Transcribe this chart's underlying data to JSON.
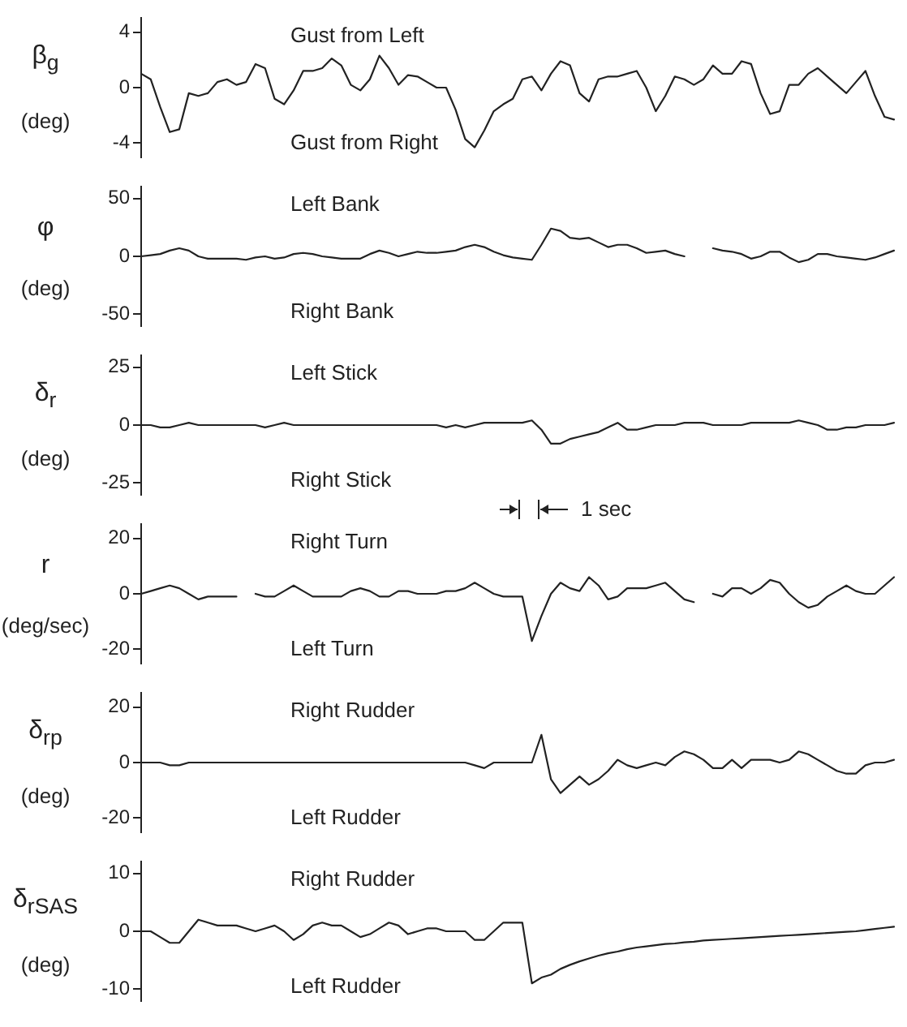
{
  "chart_data": [
    {
      "type": "line",
      "ylabel": "β$_{g}$\n(deg)",
      "annotations": [
        "Gust from Left",
        "Gust from Right"
      ],
      "tick_labels": "y",
      "ylim": [
        -5,
        5
      ],
      "yticks": [
        -4,
        0,
        4
      ],
      "categories": [
        null,
        null,
        null,
        null,
        null,
        null,
        null,
        null,
        null,
        null,
        null,
        null,
        null,
        null,
        null,
        null,
        null,
        null,
        null,
        null,
        null,
        null,
        null,
        null,
        null,
        null,
        null,
        null,
        null,
        null,
        null,
        null,
        null,
        null,
        null,
        null,
        null,
        null,
        null,
        null,
        null,
        null,
        null,
        null,
        null,
        null,
        null,
        null,
        null,
        null,
        null,
        null,
        null,
        null,
        null,
        null,
        null,
        null,
        null,
        null,
        null,
        null,
        null,
        null,
        null,
        null,
        null,
        null,
        null,
        null,
        null,
        null,
        null,
        null,
        null,
        null,
        null,
        null,
        null,
        null
      ],
      "series": [
        {
          "color": "#222222",
          "values": [
            1.0,
            0.6,
            -1.4,
            -3.2,
            -3.0,
            -0.4,
            -0.6,
            -0.4,
            0.4,
            0.6,
            0.2,
            0.4,
            1.7,
            1.4,
            -0.8,
            -1.2,
            -0.2,
            1.2,
            1.2,
            1.4,
            2.1,
            1.6,
            0.2,
            -0.2,
            0.6,
            2.3,
            1.4,
            0.2,
            0.9,
            0.8,
            0.4,
            0,
            0,
            -1.6,
            -3.7,
            -4.3,
            -3.1,
            -1.7,
            -1.2,
            -0.8,
            0.6,
            0.8,
            -0.2,
            1.0,
            1.9,
            1.6,
            -0.4,
            -1.0,
            0.6,
            0.8,
            0.8,
            1.0,
            1.2,
            0,
            -1.7,
            -0.6,
            0.8,
            0.6,
            0.2,
            0.6,
            1.6,
            1.0,
            1.0,
            1.9,
            1.7,
            -0.4,
            -1.9,
            -1.7,
            0.2,
            0.2,
            1.0,
            1.4,
            0.8,
            0.2,
            -0.4,
            0.4,
            1.2,
            -0.6,
            -2.1,
            -2.3
          ]
        }
      ]
    },
    {
      "type": "line",
      "ylabel": "φ\n(deg)",
      "annotations": [
        "Left Bank",
        "Right Bank"
      ],
      "tick_labels": "y",
      "ylim": [
        -60,
        60
      ],
      "yticks": [
        -50,
        0,
        50
      ],
      "categories": [
        null,
        null,
        null,
        null,
        null,
        null,
        null,
        null,
        null,
        null,
        null,
        null,
        null,
        null,
        null,
        null,
        null,
        null,
        null,
        null,
        null,
        null,
        null,
        null,
        null,
        null,
        null,
        null,
        null,
        null,
        null,
        null,
        null,
        null,
        null,
        null,
        null,
        null,
        null,
        null,
        null,
        null,
        null,
        null,
        null,
        null,
        null,
        null,
        null,
        null,
        null,
        null,
        null,
        null,
        null,
        null,
        null,
        null,
        null,
        null,
        null,
        null,
        null,
        null,
        null,
        null,
        null,
        null,
        null,
        null,
        null,
        null,
        null,
        null,
        null,
        null,
        null,
        null,
        null,
        null
      ],
      "series": [
        {
          "color": "#222222",
          "values": [
            0,
            1,
            2,
            5,
            7,
            5,
            0,
            -2,
            -2,
            -2,
            -2,
            -3,
            -1,
            0,
            -2,
            -1,
            2,
            3,
            2,
            0,
            -1,
            -2,
            -2,
            -2,
            2,
            5,
            3,
            0,
            2,
            4,
            3,
            3,
            4,
            5,
            8,
            10,
            8,
            4,
            1,
            -1,
            -2,
            -3,
            10,
            24,
            22,
            16,
            15,
            16,
            12,
            8,
            10,
            10,
            7,
            3,
            4,
            5,
            2,
            0,
            null,
            null,
            7,
            5,
            4,
            2,
            -2,
            0,
            4,
            4,
            -1,
            -5,
            -3,
            2,
            2,
            0,
            -1,
            -2,
            -3,
            -1,
            2,
            5
          ]
        }
      ]
    },
    {
      "type": "line",
      "ylabel": "δ$_{r}$\n(deg)",
      "annotations": [
        "Left Stick",
        "Right Stick"
      ],
      "tick_labels": "y",
      "ylim": [
        -30,
        30
      ],
      "yticks": [
        -25,
        0,
        25
      ],
      "categories": [
        null,
        null,
        null,
        null,
        null,
        null,
        null,
        null,
        null,
        null,
        null,
        null,
        null,
        null,
        null,
        null,
        null,
        null,
        null,
        null,
        null,
        null,
        null,
        null,
        null,
        null,
        null,
        null,
        null,
        null,
        null,
        null,
        null,
        null,
        null,
        null,
        null,
        null,
        null,
        null,
        null,
        null,
        null,
        null,
        null,
        null,
        null,
        null,
        null,
        null,
        null,
        null,
        null,
        null,
        null,
        null,
        null,
        null,
        null,
        null,
        null,
        null,
        null,
        null,
        null,
        null,
        null,
        null,
        null,
        null,
        null,
        null,
        null,
        null,
        null,
        null,
        null,
        null,
        null,
        null
      ],
      "series": [
        {
          "color": "#222222",
          "values": [
            0,
            0,
            -1,
            -1,
            0,
            1,
            0,
            0,
            0,
            0,
            0,
            0,
            0,
            -1,
            0,
            1,
            0,
            0,
            0,
            0,
            0,
            0,
            0,
            0,
            0,
            0,
            0,
            0,
            0,
            0,
            0,
            0,
            -1,
            0,
            -1,
            0,
            1,
            1,
            1,
            1,
            1,
            2,
            -2,
            -8,
            -8,
            -6,
            -5,
            -4,
            -3,
            -1,
            1,
            -2,
            -2,
            -1,
            0,
            0,
            0,
            1,
            1,
            1,
            0,
            0,
            0,
            0,
            1,
            1,
            1,
            1,
            1,
            2,
            1,
            0,
            -2,
            -2,
            -1,
            -1,
            0,
            0,
            0,
            1
          ]
        }
      ]
    },
    {
      "type": "line",
      "ylabel": "r\n(deg/sec)",
      "annotations": [
        "Right Turn",
        "Left Turn",
        "1 sec"
      ],
      "tick_labels": "y",
      "ylim": [
        -25,
        25
      ],
      "yticks": [
        -20,
        0,
        20
      ],
      "categories": [
        null,
        null,
        null,
        null,
        null,
        null,
        null,
        null,
        null,
        null,
        null,
        null,
        null,
        null,
        null,
        null,
        null,
        null,
        null,
        null,
        null,
        null,
        null,
        null,
        null,
        null,
        null,
        null,
        null,
        null,
        null,
        null,
        null,
        null,
        null,
        null,
        null,
        null,
        null,
        null,
        null,
        null,
        null,
        null,
        null,
        null,
        null,
        null,
        null,
        null,
        null,
        null,
        null,
        null,
        null,
        null,
        null,
        null,
        null,
        null,
        null,
        null,
        null,
        null,
        null,
        null,
        null,
        null,
        null,
        null,
        null,
        null,
        null,
        null,
        null,
        null,
        null,
        null,
        null,
        null
      ],
      "series": [
        {
          "color": "#222222",
          "values": [
            0,
            1,
            2,
            3,
            2,
            0,
            -2,
            -1,
            -1,
            -1,
            -1,
            null,
            0,
            -1,
            -1,
            1,
            3,
            1,
            -1,
            -1,
            -1,
            -1,
            1,
            2,
            1,
            -1,
            -1,
            1,
            1,
            0,
            0,
            0,
            1,
            1,
            2,
            4,
            2,
            0,
            -1,
            -1,
            -1,
            -17,
            -8,
            0,
            4,
            2,
            1,
            6,
            3,
            -2,
            -1,
            2,
            2,
            2,
            3,
            4,
            1,
            -2,
            -3,
            null,
            0,
            -1,
            2,
            2,
            0,
            2,
            5,
            4,
            0,
            -3,
            -5,
            -4,
            -1,
            1,
            3,
            1,
            0,
            0,
            3,
            6
          ]
        }
      ]
    },
    {
      "type": "line",
      "ylabel": "δ$_{rp}$\n(deg)",
      "annotations": [
        "Right Rudder",
        "Left Rudder"
      ],
      "tick_labels": "y",
      "ylim": [
        -25,
        25
      ],
      "yticks": [
        -20,
        0,
        20
      ],
      "categories": [
        null,
        null,
        null,
        null,
        null,
        null,
        null,
        null,
        null,
        null,
        null,
        null,
        null,
        null,
        null,
        null,
        null,
        null,
        null,
        null,
        null,
        null,
        null,
        null,
        null,
        null,
        null,
        null,
        null,
        null,
        null,
        null,
        null,
        null,
        null,
        null,
        null,
        null,
        null,
        null,
        null,
        null,
        null,
        null,
        null,
        null,
        null,
        null,
        null,
        null,
        null,
        null,
        null,
        null,
        null,
        null,
        null,
        null,
        null,
        null,
        null,
        null,
        null,
        null,
        null,
        null,
        null,
        null,
        null,
        null,
        null,
        null,
        null,
        null,
        null,
        null,
        null,
        null,
        null,
        null
      ],
      "series": [
        {
          "color": "#222222",
          "values": [
            0,
            0,
            0,
            -1,
            -1,
            0,
            0,
            0,
            0,
            0,
            0,
            0,
            0,
            0,
            0,
            0,
            0,
            0,
            0,
            0,
            0,
            0,
            0,
            0,
            0,
            0,
            0,
            0,
            0,
            0,
            0,
            0,
            0,
            0,
            0,
            -1,
            -2,
            0,
            0,
            0,
            0,
            0,
            10,
            -6,
            -11,
            -8,
            -5,
            -8,
            -6,
            -3,
            1,
            -1,
            -2,
            -1,
            0,
            -1,
            2,
            4,
            3,
            1,
            -2,
            -2,
            1,
            -2,
            1,
            1,
            1,
            0,
            1,
            4,
            3,
            1,
            -1,
            -3,
            -4,
            -4,
            -1,
            0,
            0,
            1
          ]
        }
      ]
    },
    {
      "type": "line",
      "ylabel": "δ$_{rSAS}$\n(deg)",
      "annotations": [
        "Right Rudder",
        "Left Rudder"
      ],
      "tick_labels": "y",
      "ylim": [
        -12,
        12
      ],
      "yticks": [
        -10,
        0,
        10
      ],
      "categories": [
        null,
        null,
        null,
        null,
        null,
        null,
        null,
        null,
        null,
        null,
        null,
        null,
        null,
        null,
        null,
        null,
        null,
        null,
        null,
        null,
        null,
        null,
        null,
        null,
        null,
        null,
        null,
        null,
        null,
        null,
        null,
        null,
        null,
        null,
        null,
        null,
        null,
        null,
        null,
        null,
        null,
        null,
        null,
        null,
        null,
        null,
        null,
        null,
        null,
        null,
        null,
        null,
        null,
        null,
        null,
        null,
        null,
        null,
        null,
        null,
        null,
        null,
        null,
        null,
        null,
        null,
        null,
        null,
        null,
        null,
        null,
        null,
        null,
        null,
        null,
        null,
        null,
        null,
        null,
        null
      ],
      "series": [
        {
          "color": "#222222",
          "values": [
            0,
            0,
            -1,
            -2,
            -2,
            0,
            2,
            1.5,
            1,
            1,
            1,
            0.5,
            0,
            0.5,
            1,
            0,
            -1.5,
            -0.5,
            1,
            1.5,
            1,
            1,
            0,
            -1,
            -0.5,
            0.5,
            1.5,
            1,
            -0.5,
            0,
            0.5,
            0.5,
            0,
            0,
            0,
            -1.5,
            -1.5,
            0,
            1.5,
            1.5,
            1.5,
            -9,
            -8,
            -7.5,
            -6.5,
            -5.8,
            -5.2,
            -4.7,
            -4.2,
            -3.8,
            -3.5,
            -3.1,
            -2.8,
            -2.6,
            -2.4,
            -2.2,
            -2.1,
            -1.9,
            -1.8,
            -1.6,
            -1.5,
            -1.4,
            -1.3,
            -1.2,
            -1.1,
            -1.0,
            -0.9,
            -0.8,
            -0.7,
            -0.6,
            -0.5,
            -0.4,
            -0.3,
            -0.2,
            -0.1,
            0,
            0.2,
            0.4,
            0.6,
            0.8
          ]
        }
      ]
    }
  ]
}
